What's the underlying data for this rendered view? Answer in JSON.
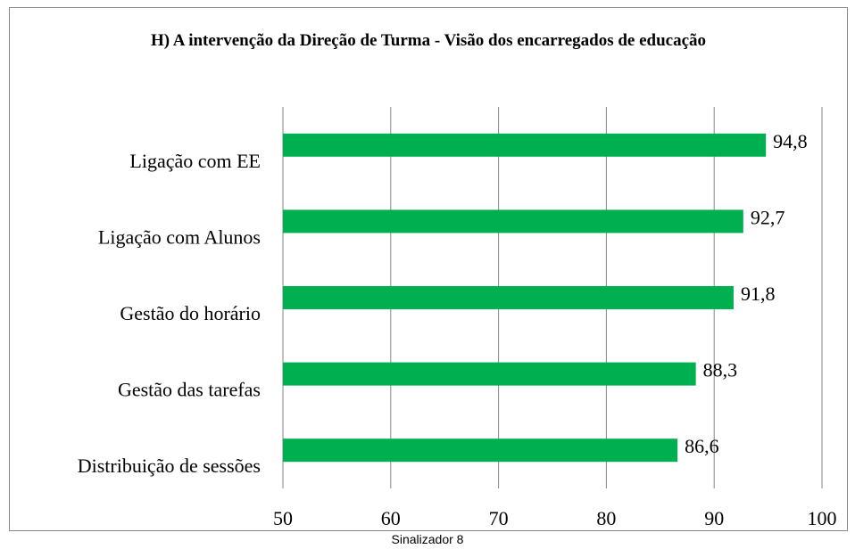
{
  "chart_data": {
    "type": "bar",
    "orientation": "horizontal",
    "title": "H) A intervenção da Direção de Turma - Visão dos encarregados de educação",
    "categories": [
      "Ligação com EE",
      "Ligação com Alunos",
      "Gestão do horário",
      "Gestão das tarefas",
      "Distribuição de sessões"
    ],
    "values": [
      94.8,
      92.7,
      91.8,
      88.3,
      86.6
    ],
    "value_labels": [
      "94,8",
      "92,7",
      "91,8",
      "88,3",
      "86,6"
    ],
    "color": "#00b050",
    "xlim": [
      50,
      100
    ],
    "xticks": [
      50,
      60,
      70,
      80,
      90,
      100
    ],
    "grid": true,
    "caption": "Sinalizador 8"
  }
}
